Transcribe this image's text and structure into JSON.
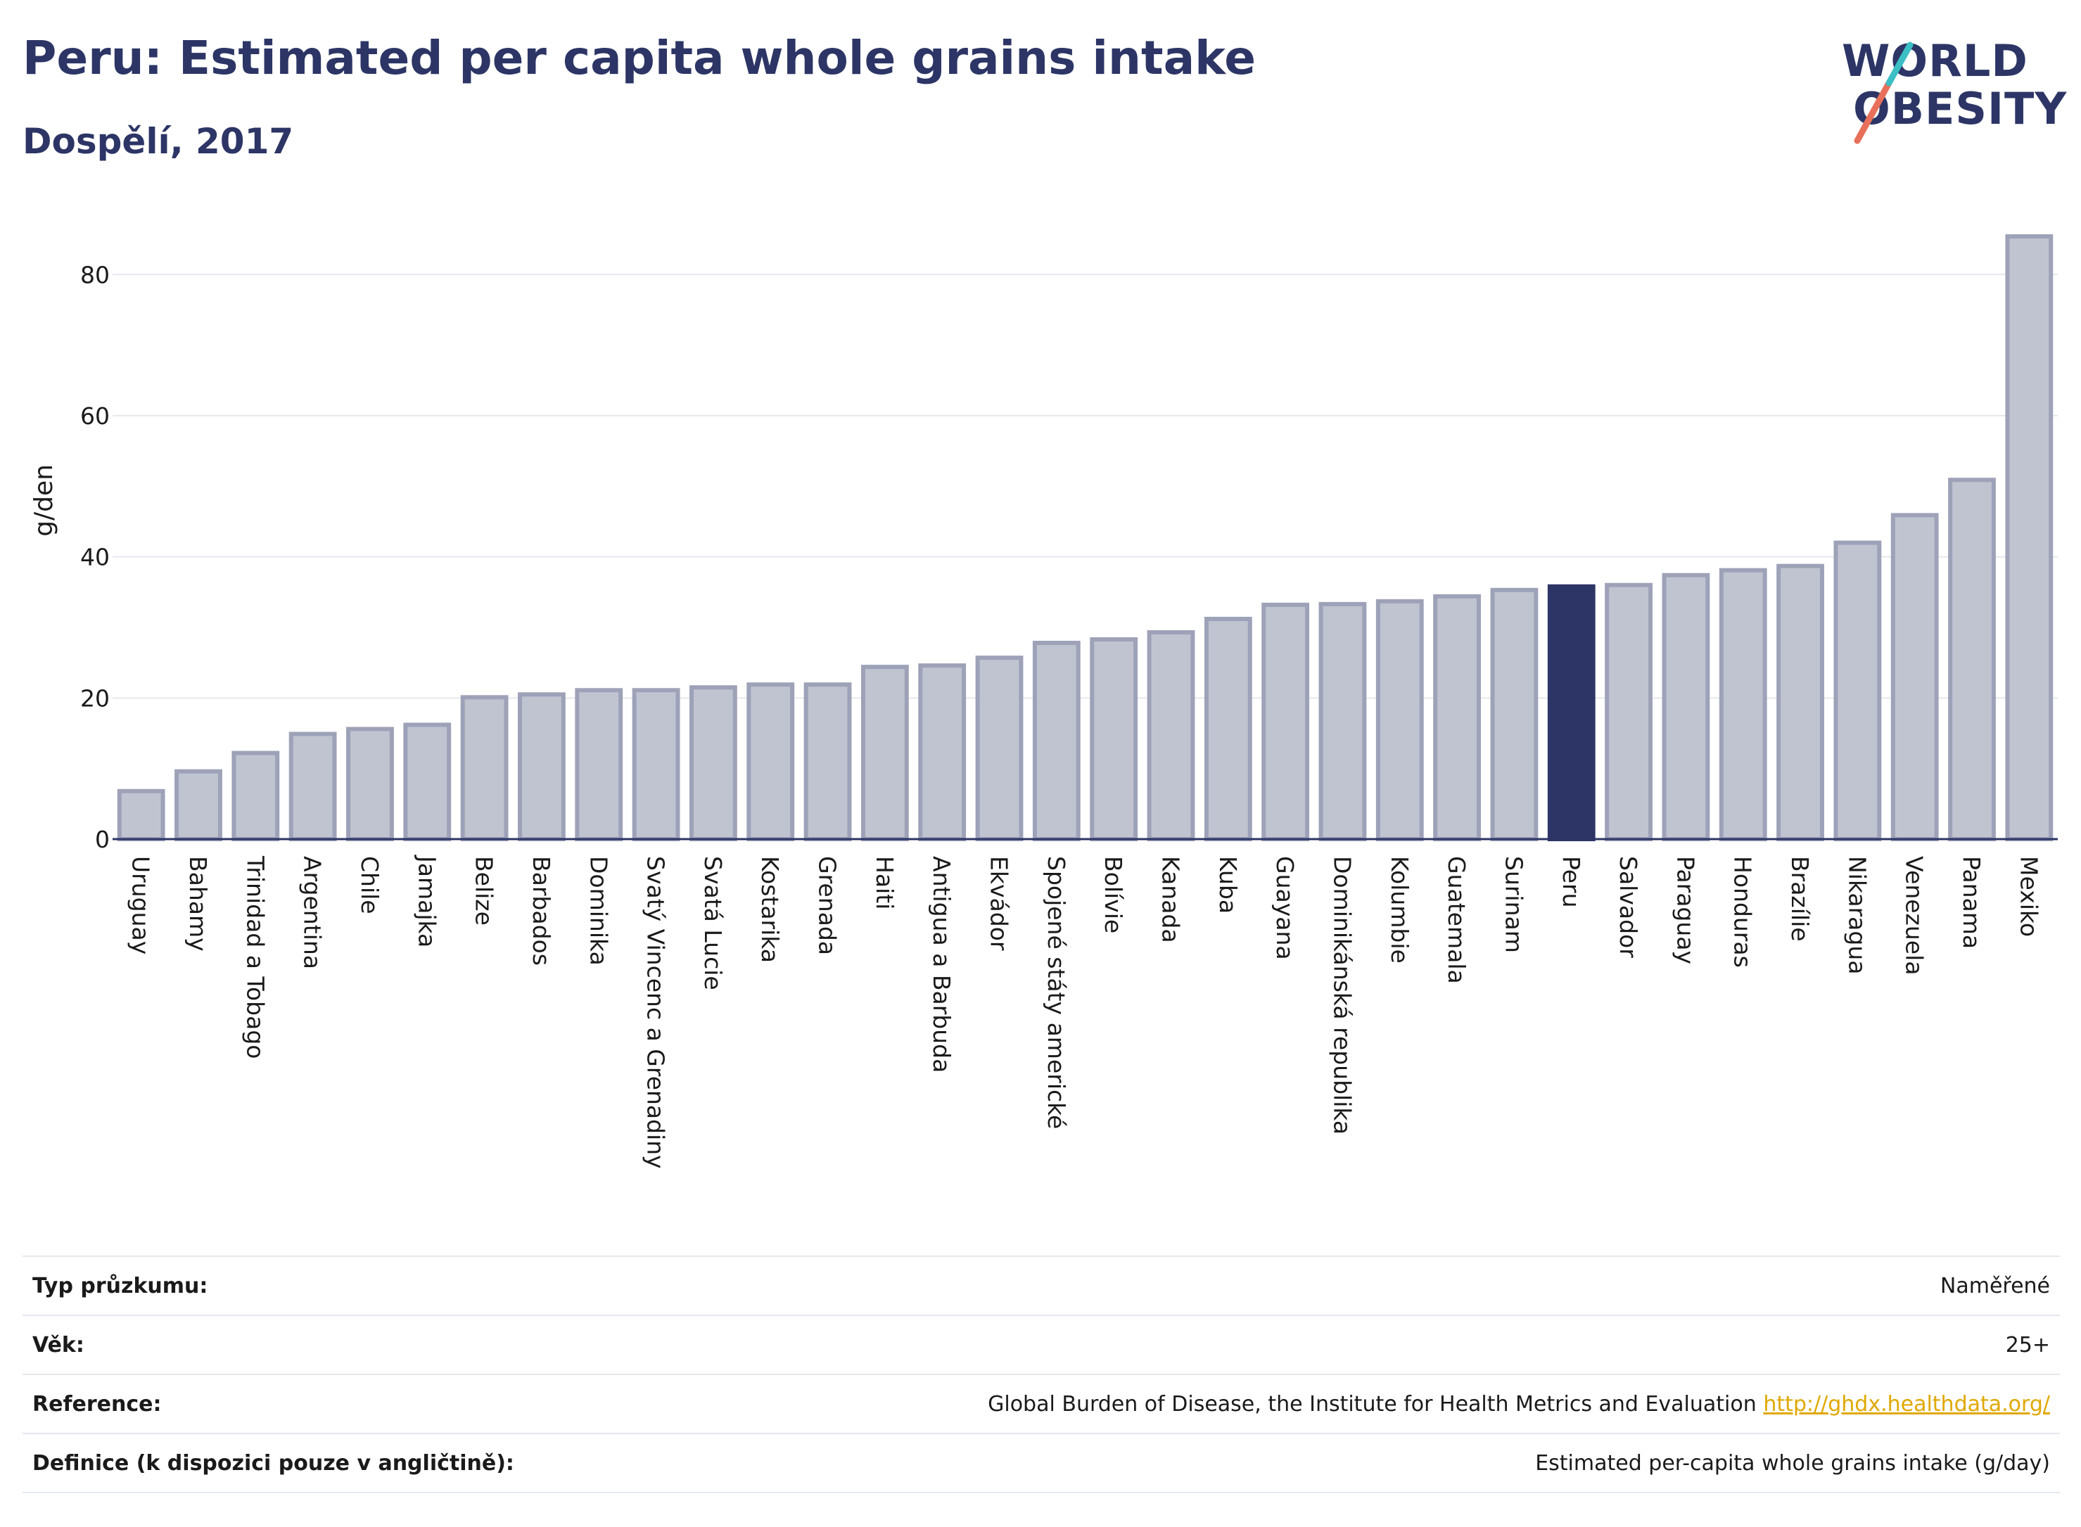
{
  "header": {
    "title": "Peru: Estimated per capita whole grains intake",
    "subtitle": "Dospělí, 2017"
  },
  "logo": {
    "line1": "WORLD",
    "line2": "OBESITY",
    "accent_colors": [
      "#e8705a",
      "#3bbfc4"
    ]
  },
  "chart_data": {
    "type": "bar",
    "ylabel": "g/den",
    "ylim": [
      0,
      88
    ],
    "yticks": [
      0,
      20,
      40,
      60,
      80
    ],
    "grid": true,
    "highlight": "Peru",
    "colors": {
      "bar": "#c0c3d0",
      "bar_border": "#9ea2b8",
      "highlight": "#2c3565",
      "grid": "#e6e8ee"
    },
    "categories": [
      "Uruguay",
      "Bahamy",
      "Trinidad a Tobago",
      "Argentina",
      "Chile",
      "Jamajka",
      "Belize",
      "Barbados",
      "Dominika",
      "Svatý Vincenc a Grenadiny",
      "Svatá Lucie",
      "Kostarika",
      "Grenada",
      "Haiti",
      "Antigua a Barbuda",
      "Ekvádor",
      "Spojené státy americké",
      "Bolívie",
      "Kanada",
      "Kuba",
      "Guayana",
      "Dominikánská republika",
      "Kolumbie",
      "Guatemala",
      "Surinam",
      "Peru",
      "Salvador",
      "Paraguay",
      "Honduras",
      "Brazílie",
      "Nikaragua",
      "Venezuela",
      "Panama",
      "Mexiko"
    ],
    "values": [
      6.8,
      9.6,
      12.2,
      14.9,
      15.6,
      16.2,
      20.1,
      20.5,
      21.1,
      21.1,
      21.5,
      21.9,
      21.9,
      24.4,
      24.6,
      25.7,
      27.8,
      28.3,
      29.3,
      31.2,
      33.2,
      33.3,
      33.7,
      34.4,
      35.3,
      35.8,
      36.0,
      37.4,
      38.1,
      38.7,
      42.0,
      45.9,
      50.9,
      85.4
    ]
  },
  "info": [
    {
      "key": "Typ průzkumu:",
      "value": "Naměřené"
    },
    {
      "key": "Věk:",
      "value": "25+"
    },
    {
      "key": "Reference:",
      "value": "Global Burden of Disease, the Institute for Health Metrics and Evaluation",
      "link": "http://ghdx.healthdata.org/"
    },
    {
      "key": "Definice (k dispozici pouze v angličtině):",
      "value": "Estimated per-capita whole grains intake (g/day)"
    }
  ]
}
